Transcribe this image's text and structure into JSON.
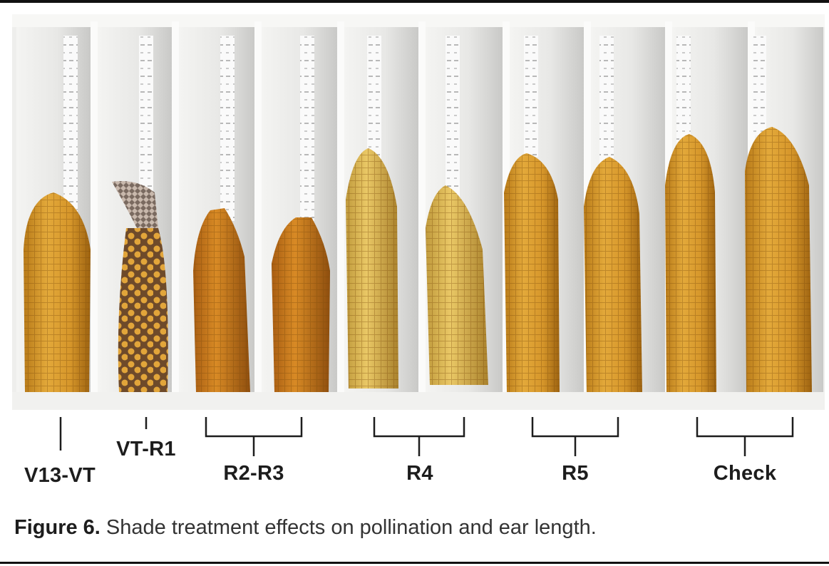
{
  "figure": {
    "groups": [
      {
        "label": "V13-VT"
      },
      {
        "label": "VT-R1"
      },
      {
        "label": "R2-R3"
      },
      {
        "label": "R4"
      },
      {
        "label": "R5"
      },
      {
        "label": "Check"
      }
    ],
    "caption_prefix": "Figure 6.",
    "caption_text": "Shade treatment effects on pollination and ear length."
  }
}
